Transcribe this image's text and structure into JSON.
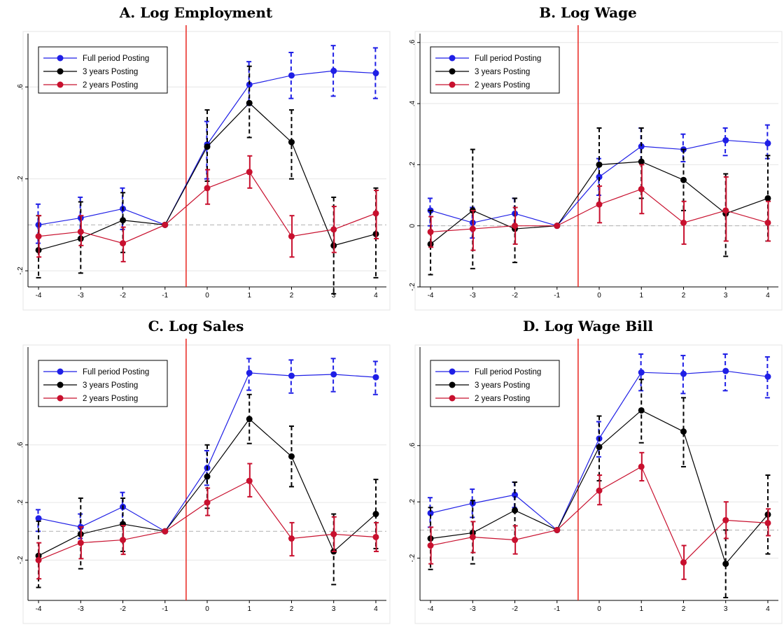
{
  "colors": {
    "full": "#1f1fe6",
    "three": "#000000",
    "two": "#c8102e",
    "event_line": "#e8251f",
    "zero_line": "#b0b0b0",
    "grid": "#e6e6e6"
  },
  "chart_data": [
    {
      "type": "line",
      "title": "A. Log Employment",
      "xlabel": "",
      "ylabel": "",
      "x": [
        -4,
        -3,
        -2,
        -1,
        0,
        1,
        2,
        3,
        4
      ],
      "xticks": [
        "-4",
        "-3",
        "-2",
        "-1",
        "0",
        "1",
        "2",
        "3",
        "4"
      ],
      "ylim": [
        -0.27,
        0.82
      ],
      "yticks": [
        -0.2,
        0.2,
        0.6
      ],
      "ytick_labels": [
        "-.2",
        ".2",
        ".6"
      ],
      "event_line_x": -0.5,
      "grid": true,
      "legend_position": "top-left",
      "series": [
        {
          "name": "Full period Posting",
          "color_key": "full",
          "dashed_ci": true,
          "values": [
            0.0,
            0.03,
            0.07,
            0.0,
            0.35,
            0.61,
            0.65,
            0.67,
            0.66
          ],
          "ci_low": [
            -0.08,
            -0.06,
            -0.02,
            0.0,
            0.2,
            0.52,
            0.55,
            0.56,
            0.55
          ],
          "ci_high": [
            0.09,
            0.12,
            0.16,
            0.0,
            0.45,
            0.71,
            0.75,
            0.78,
            0.77
          ]
        },
        {
          "name": "3 years Posting",
          "color_key": "three",
          "dashed_ci": true,
          "values": [
            -0.11,
            -0.06,
            0.02,
            0.0,
            0.34,
            0.53,
            0.36,
            -0.09,
            -0.04
          ],
          "ci_low": [
            -0.23,
            -0.21,
            -0.12,
            0.0,
            0.19,
            0.38,
            0.2,
            -0.3,
            -0.23
          ],
          "ci_high": [
            0.04,
            0.1,
            0.14,
            0.0,
            0.5,
            0.69,
            0.5,
            0.12,
            0.16
          ]
        },
        {
          "name": "2 years Posting",
          "color_key": "two",
          "dashed_ci": false,
          "values": [
            -0.05,
            -0.03,
            -0.08,
            0.0,
            0.16,
            0.23,
            -0.05,
            -0.02,
            0.05
          ],
          "ci_low": [
            -0.14,
            -0.09,
            -0.16,
            0.0,
            0.09,
            0.16,
            -0.14,
            -0.12,
            -0.06
          ],
          "ci_high": [
            0.04,
            0.04,
            -0.01,
            0.0,
            0.24,
            0.3,
            0.04,
            0.08,
            0.15
          ]
        }
      ]
    },
    {
      "type": "line",
      "title": "B. Log Wage",
      "xlabel": "",
      "ylabel": "",
      "x": [
        -4,
        -3,
        -2,
        -1,
        0,
        1,
        2,
        3,
        4
      ],
      "xticks": [
        "-4",
        "-3",
        "-2",
        "-1",
        "0",
        "1",
        "2",
        "3",
        "4"
      ],
      "ylim": [
        -0.2,
        0.62
      ],
      "yticks": [
        -0.2,
        0.0,
        0.2,
        0.4,
        0.6
      ],
      "ytick_labels": [
        "-.2",
        "0",
        ".2",
        ".4",
        ".6"
      ],
      "event_line_x": -0.5,
      "grid": true,
      "legend_position": "top-left",
      "series": [
        {
          "name": "Full period Posting",
          "color_key": "full",
          "dashed_ci": true,
          "values": [
            0.05,
            0.01,
            0.04,
            0.0,
            0.16,
            0.26,
            0.25,
            0.28,
            0.27
          ],
          "ci_low": [
            0.0,
            -0.04,
            -0.01,
            0.0,
            0.1,
            0.21,
            0.21,
            0.23,
            0.22
          ],
          "ci_high": [
            0.09,
            0.06,
            0.09,
            0.0,
            0.22,
            0.32,
            0.3,
            0.32,
            0.33
          ]
        },
        {
          "name": "3 years Posting",
          "color_key": "three",
          "dashed_ci": true,
          "values": [
            -0.06,
            0.05,
            -0.01,
            0.0,
            0.2,
            0.21,
            0.15,
            0.04,
            0.09
          ],
          "ci_low": [
            -0.16,
            -0.14,
            -0.12,
            0.0,
            0.07,
            0.09,
            0.05,
            -0.1,
            -0.05
          ],
          "ci_high": [
            0.05,
            0.25,
            0.09,
            0.0,
            0.32,
            0.32,
            0.25,
            0.17,
            0.23
          ]
        },
        {
          "name": "2 years Posting",
          "color_key": "two",
          "dashed_ci": false,
          "values": [
            -0.02,
            -0.01,
            0.0,
            0.0,
            0.07,
            0.12,
            0.01,
            0.05,
            0.01
          ],
          "ci_low": [
            -0.07,
            -0.08,
            -0.06,
            0.0,
            0.01,
            0.04,
            -0.06,
            -0.05,
            -0.05
          ],
          "ci_high": [
            0.03,
            0.05,
            0.06,
            0.0,
            0.13,
            0.2,
            0.08,
            0.16,
            0.08
          ]
        }
      ]
    },
    {
      "type": "line",
      "title": "C. Log Sales",
      "xlabel": "",
      "ylabel": "",
      "x": [
        -4,
        -3,
        -2,
        -1,
        0,
        1,
        2,
        3,
        4
      ],
      "xticks": [
        "-4",
        "-3",
        "-2",
        "-1",
        "0",
        "1",
        "2",
        "3",
        "4"
      ],
      "ylim": [
        -0.48,
        1.26
      ],
      "yticks": [
        -0.2,
        0.2,
        0.6
      ],
      "ytick_labels": [
        "-.2",
        ".2",
        ".6"
      ],
      "event_line_x": -0.5,
      "grid": true,
      "legend_position": "top-left",
      "series": [
        {
          "name": "Full period Posting",
          "color_key": "full",
          "dashed_ci": true,
          "values": [
            0.09,
            0.03,
            0.17,
            0.0,
            0.44,
            1.1,
            1.08,
            1.09,
            1.07
          ],
          "ci_low": [
            0.0,
            -0.05,
            0.06,
            0.0,
            0.32,
            0.98,
            0.96,
            0.97,
            0.95
          ],
          "ci_high": [
            0.15,
            0.12,
            0.27,
            0.0,
            0.56,
            1.2,
            1.19,
            1.2,
            1.18
          ]
        },
        {
          "name": "3 years Posting",
          "color_key": "three",
          "dashed_ci": true,
          "values": [
            -0.17,
            -0.02,
            0.05,
            0.0,
            0.38,
            0.78,
            0.52,
            -0.14,
            0.12
          ],
          "ci_low": [
            -0.39,
            -0.26,
            -0.14,
            0.0,
            0.16,
            0.61,
            0.31,
            -0.37,
            -0.12
          ],
          "ci_high": [
            0.07,
            0.23,
            0.23,
            0.0,
            0.6,
            0.95,
            0.73,
            0.12,
            0.36
          ]
        },
        {
          "name": "2 years Posting",
          "color_key": "two",
          "dashed_ci": false,
          "values": [
            -0.2,
            -0.08,
            -0.06,
            0.0,
            0.2,
            0.35,
            -0.05,
            -0.02,
            -0.04
          ],
          "ci_low": [
            -0.33,
            -0.19,
            -0.16,
            0.0,
            0.11,
            0.24,
            -0.17,
            -0.14,
            -0.14
          ],
          "ci_high": [
            -0.08,
            0.03,
            0.04,
            0.0,
            0.3,
            0.47,
            0.06,
            0.1,
            0.06
          ]
        }
      ]
    },
    {
      "type": "line",
      "title": "D. Log Wage Bill",
      "xlabel": "",
      "ylabel": "",
      "x": [
        -4,
        -3,
        -2,
        -1,
        0,
        1,
        2,
        3,
        4
      ],
      "xticks": [
        "-4",
        "-3",
        "-2",
        "-1",
        "0",
        "1",
        "2",
        "3",
        "4"
      ],
      "ylim": [
        -0.5,
        1.28
      ],
      "yticks": [
        -0.2,
        0.2,
        0.6
      ],
      "ytick_labels": [
        "-.2",
        ".2",
        ".6"
      ],
      "event_line_x": -0.5,
      "grid": true,
      "legend_position": "top-left",
      "series": [
        {
          "name": "Full period Posting",
          "color_key": "full",
          "dashed_ci": true,
          "values": [
            0.12,
            0.19,
            0.25,
            0.0,
            0.65,
            1.12,
            1.11,
            1.13,
            1.09
          ],
          "ci_low": [
            0.02,
            0.09,
            0.16,
            0.0,
            0.52,
            0.99,
            0.97,
            0.99,
            0.94
          ],
          "ci_high": [
            0.23,
            0.29,
            0.34,
            0.0,
            0.77,
            1.25,
            1.24,
            1.25,
            1.23
          ]
        },
        {
          "name": "3 years Posting",
          "color_key": "three",
          "dashed_ci": true,
          "values": [
            -0.06,
            -0.02,
            0.14,
            0.0,
            0.59,
            0.85,
            0.7,
            -0.24,
            0.11
          ],
          "ci_low": [
            -0.28,
            -0.24,
            -0.07,
            0.0,
            0.35,
            0.62,
            0.45,
            -0.48,
            -0.17
          ],
          "ci_high": [
            0.16,
            0.21,
            0.34,
            0.0,
            0.81,
            1.07,
            0.94,
            0.0,
            0.39
          ]
        },
        {
          "name": "2 years Posting",
          "color_key": "two",
          "dashed_ci": false,
          "values": [
            -0.11,
            -0.05,
            -0.07,
            0.0,
            0.28,
            0.45,
            -0.23,
            0.07,
            0.05
          ],
          "ci_low": [
            -0.24,
            -0.16,
            -0.17,
            0.0,
            0.18,
            0.35,
            -0.35,
            -0.06,
            -0.04
          ],
          "ci_high": [
            0.02,
            0.06,
            0.03,
            0.0,
            0.39,
            0.55,
            -0.11,
            0.2,
            0.15
          ]
        }
      ]
    }
  ]
}
